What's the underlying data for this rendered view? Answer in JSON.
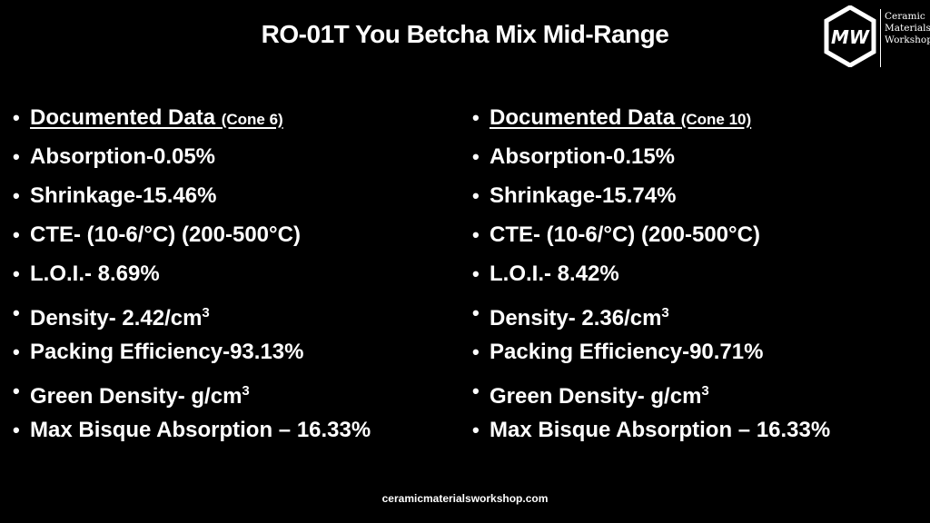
{
  "title": "RO-01T You Betcha Mix Mid-Range",
  "logo": {
    "text_lines": [
      "Ceramic",
      "Materials",
      "Workshop"
    ],
    "mark_letters": "MW"
  },
  "left": {
    "header": {
      "label": "Documented Data",
      "cone": "(Cone 6)"
    },
    "absorption": "Absorption-0.05%",
    "shrinkage": "Shrinkage-15.46%",
    "cte": "CTE- (10-6/°C) (200-500°C)",
    "loi": "L.O.I.- 8.69%",
    "density": {
      "text": "Density- 2.42/cm",
      "sup": "3"
    },
    "packing": "Packing Efficiency-93.13%",
    "green_density": {
      "text": "Green Density- g/cm",
      "sup": "3"
    },
    "max_bisque": "Max Bisque Absorption – 16.33%"
  },
  "right": {
    "header": {
      "label": "Documented Data",
      "cone": "(Cone 10)"
    },
    "absorption": "Absorption-0.15%",
    "shrinkage": "Shrinkage-15.74%",
    "cte": "CTE- (10-6/°C) (200-500°C)",
    "loi": "L.O.I.- 8.42%",
    "density": {
      "text": "Density- 2.36/cm",
      "sup": "3"
    },
    "packing": "Packing Efficiency-90.71%",
    "green_density": {
      "text": "Green Density- g/cm",
      "sup": "3"
    },
    "max_bisque": "Max Bisque Absorption – 16.33%"
  },
  "footer": "ceramicmaterialsworkshop.com",
  "colors": {
    "background": "#000000",
    "text": "#ffffff"
  }
}
